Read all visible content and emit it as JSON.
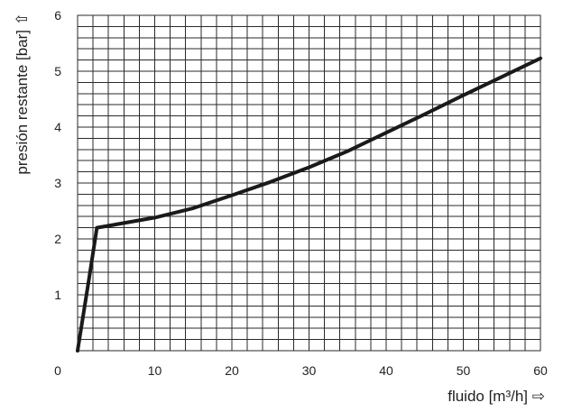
{
  "chart_data": {
    "type": "line",
    "xlabel": "fluido [m³/h] ⇨",
    "ylabel": "presión restante [bar] ⇧",
    "xlim": [
      0,
      60
    ],
    "ylim": [
      0,
      6
    ],
    "x_ticks": [
      0,
      10,
      20,
      30,
      40,
      50,
      60
    ],
    "y_ticks": [
      1,
      2,
      3,
      4,
      5,
      6
    ],
    "x_ticks_labels": [
      "0",
      "10",
      "20",
      "30",
      "40",
      "50",
      "60"
    ],
    "y_ticks_labels": [
      "1",
      "2",
      "3",
      "4",
      "5",
      "6"
    ],
    "grid": true,
    "grid_minor_x_step": 2,
    "grid_minor_y_step": 0.2,
    "series": [
      {
        "x": [
          0,
          1.5,
          2.5,
          5,
          10,
          15,
          20,
          25,
          30,
          35,
          40,
          45,
          50,
          55,
          60
        ],
        "y": [
          0,
          1.3,
          2.2,
          2.26,
          2.38,
          2.55,
          2.78,
          3.02,
          3.28,
          3.57,
          3.9,
          4.23,
          4.57,
          4.9,
          5.23
        ]
      }
    ]
  }
}
